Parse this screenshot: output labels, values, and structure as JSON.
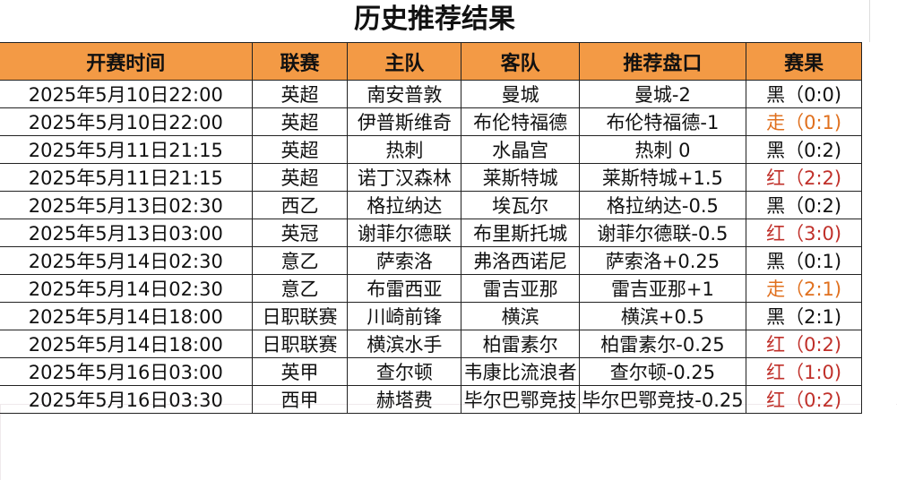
{
  "title": "历史推荐结果",
  "headers": [
    "开赛时间",
    "联赛",
    "主队",
    "客队",
    "推荐盘口",
    "赛果"
  ],
  "colors": {
    "header_bg": "#F39A45",
    "black": "#111111",
    "push": "#E0701E",
    "red": "#C0302A"
  },
  "rows": [
    {
      "time": "2025年5月10日22:00",
      "league": "英超",
      "home": "南安普敦",
      "away": "曼城",
      "pick": "曼城-2",
      "result": "黑（0:0)",
      "type": "black"
    },
    {
      "time": "2025年5月10日22:00",
      "league": "英超",
      "home": "伊普斯维奇",
      "away": "布伦特福德",
      "pick": "布伦特福德-1",
      "result": "走（0:1)",
      "type": "push"
    },
    {
      "time": "2025年5月11日21:15",
      "league": "英超",
      "home": "热刺",
      "away": "水晶宫",
      "pick": "热刺 0",
      "result": "黑（0:2)",
      "type": "black"
    },
    {
      "time": "2025年5月11日21:15",
      "league": "英超",
      "home": "诺丁汉森林",
      "away": "莱斯特城",
      "pick": "莱斯特城+1.5",
      "result": "红（2:2)",
      "type": "red"
    },
    {
      "time": "2025年5月13日02:30",
      "league": "西乙",
      "home": "格拉纳达",
      "away": "埃瓦尔",
      "pick": "格拉纳达-0.5",
      "result": "黑（0:2)",
      "type": "black"
    },
    {
      "time": "2025年5月13日03:00",
      "league": "英冠",
      "home": "谢菲尔德联",
      "away": "布里斯托城",
      "pick": "谢菲尔德联-0.5",
      "result": "红（3:0)",
      "type": "red"
    },
    {
      "time": "2025年5月14日02:30",
      "league": "意乙",
      "home": "萨索洛",
      "away": "弗洛西诺尼",
      "pick": "萨索洛+0.25",
      "result": "黑（0:1)",
      "type": "black"
    },
    {
      "time": "2025年5月14日02:30",
      "league": "意乙",
      "home": "布雷西亚",
      "away": "雷吉亚那",
      "pick": "雷吉亚那+1",
      "result": "走（2:1)",
      "type": "push"
    },
    {
      "time": "2025年5月14日18:00",
      "league": "日职联赛",
      "home": "川崎前锋",
      "away": "横滨",
      "pick": "横滨+0.5",
      "result": "黑（2:1)",
      "type": "black"
    },
    {
      "time": "2025年5月14日18:00",
      "league": "日职联赛",
      "home": "横滨水手",
      "away": "柏雷素尔",
      "pick": "柏雷素尔-0.25",
      "result": "红（0:2)",
      "type": "red"
    },
    {
      "time": "2025年5月16日03:00",
      "league": "英甲",
      "home": "查尔顿",
      "away": "韦康比流浪者",
      "pick": "查尔顿-0.25",
      "result": "红（1:0)",
      "type": "red"
    },
    {
      "time": "2025年5月16日03:30",
      "league": "西甲",
      "home": "赫塔费",
      "away": "毕尔巴鄂竞技",
      "pick": "毕尔巴鄂竞技-0.25",
      "result": "红（0:2)",
      "type": "red"
    }
  ]
}
